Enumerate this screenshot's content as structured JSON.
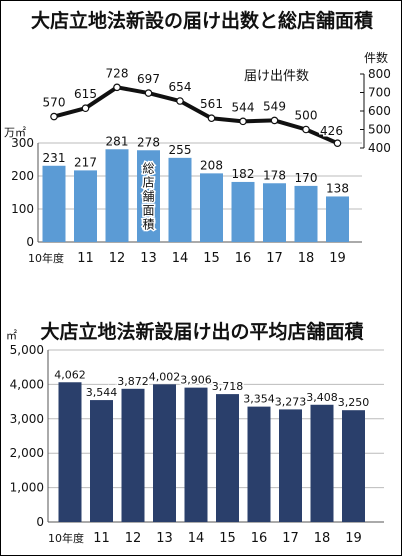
{
  "chart_data": [
    {
      "type": "line",
      "title": "大店立地法新設の届け出数と総店舗面積",
      "series": [
        {
          "name": "届け出件数",
          "values": [
            570,
            615,
            728,
            697,
            654,
            561,
            544,
            549,
            500,
            426
          ]
        }
      ],
      "categories": [
        "10年度",
        "11",
        "12",
        "13",
        "14",
        "15",
        "16",
        "17",
        "18",
        "19"
      ],
      "y_axis_unit": "件数",
      "yticks": [
        "800",
        "700",
        "600",
        "500",
        "400"
      ],
      "ylim": [
        400,
        800
      ],
      "axis_side": "right"
    },
    {
      "type": "bar",
      "series": [
        {
          "name": "総店舗面積",
          "values": [
            231,
            217,
            281,
            278,
            255,
            208,
            182,
            178,
            170,
            138
          ]
        }
      ],
      "categories": [
        "10年度",
        "11",
        "12",
        "13",
        "14",
        "15",
        "16",
        "17",
        "18",
        "19"
      ],
      "y_axis_unit": "万㎡",
      "yticks": [
        "300",
        "200",
        "100",
        "0"
      ],
      "ylim": [
        0,
        300
      ],
      "color": "#5b9bd5",
      "axis_side": "left"
    },
    {
      "type": "bar",
      "title": "大店立地法新設届け出の平均店舗面積",
      "series": [
        {
          "name": "平均店舗面積",
          "values": [
            4062,
            3544,
            3872,
            4002,
            3906,
            3718,
            3354,
            3273,
            3408,
            3250
          ],
          "labels": [
            "4,062",
            "3,544",
            "3,872",
            "4,002",
            "3,906",
            "3,718",
            "3,354",
            "3,273",
            "3,408",
            "3,250"
          ]
        }
      ],
      "categories": [
        "10年度",
        "11",
        "12",
        "13",
        "14",
        "15",
        "16",
        "17",
        "18",
        "19"
      ],
      "y_axis_unit": "㎡",
      "yticks": [
        "5,000",
        "4,000",
        "3,000",
        "2,000",
        "1,000",
        "0"
      ],
      "ylim": [
        0,
        5000
      ],
      "color": "#2a3f6b",
      "axis_side": "left"
    }
  ]
}
